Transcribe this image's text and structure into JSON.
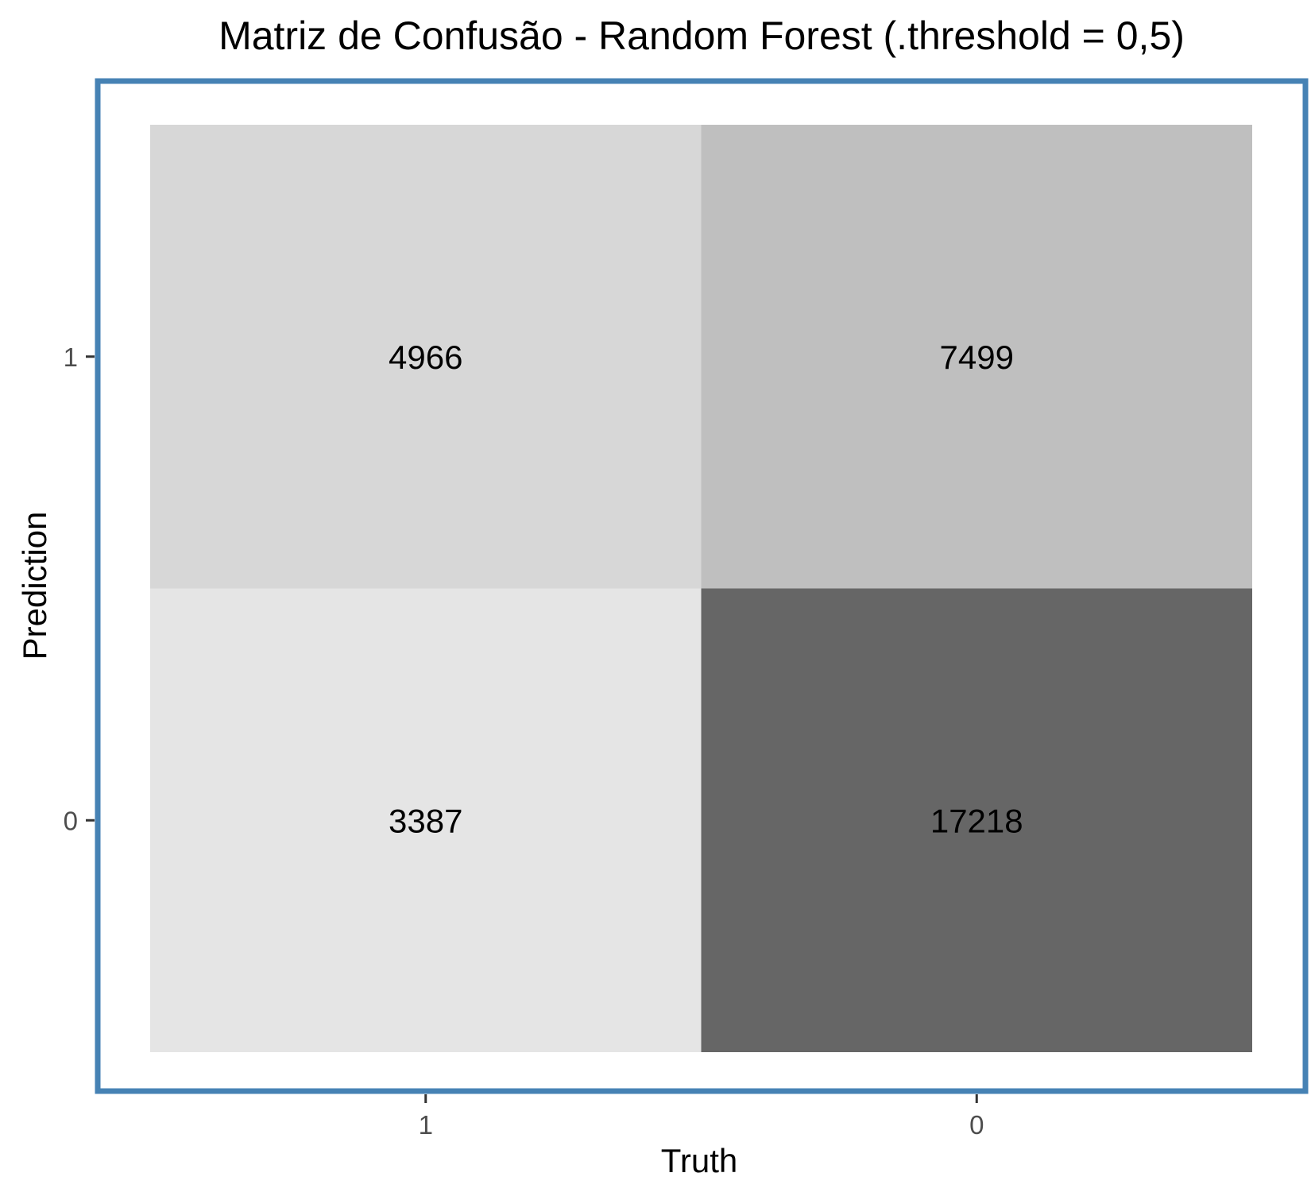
{
  "chart_data": {
    "type": "heatmap",
    "title": "Matriz de Confusão - Random Forest (.threshold = 0,5)",
    "xlabel": "Truth",
    "ylabel": "Prediction",
    "x_categories": [
      "1",
      "0"
    ],
    "y_categories": [
      "1",
      "0"
    ],
    "cells": [
      {
        "truth": "1",
        "prediction": "1",
        "value": 4966
      },
      {
        "truth": "0",
        "prediction": "1",
        "value": 7499
      },
      {
        "truth": "1",
        "prediction": "0",
        "value": 3387
      },
      {
        "truth": "0",
        "prediction": "0",
        "value": 17218
      }
    ],
    "colors": {
      "fill_low": "#e5e5e5",
      "fill_high": "#666666",
      "panel_border": "#4682b4",
      "tick": "#333333"
    },
    "legend": "none",
    "grid": false
  }
}
